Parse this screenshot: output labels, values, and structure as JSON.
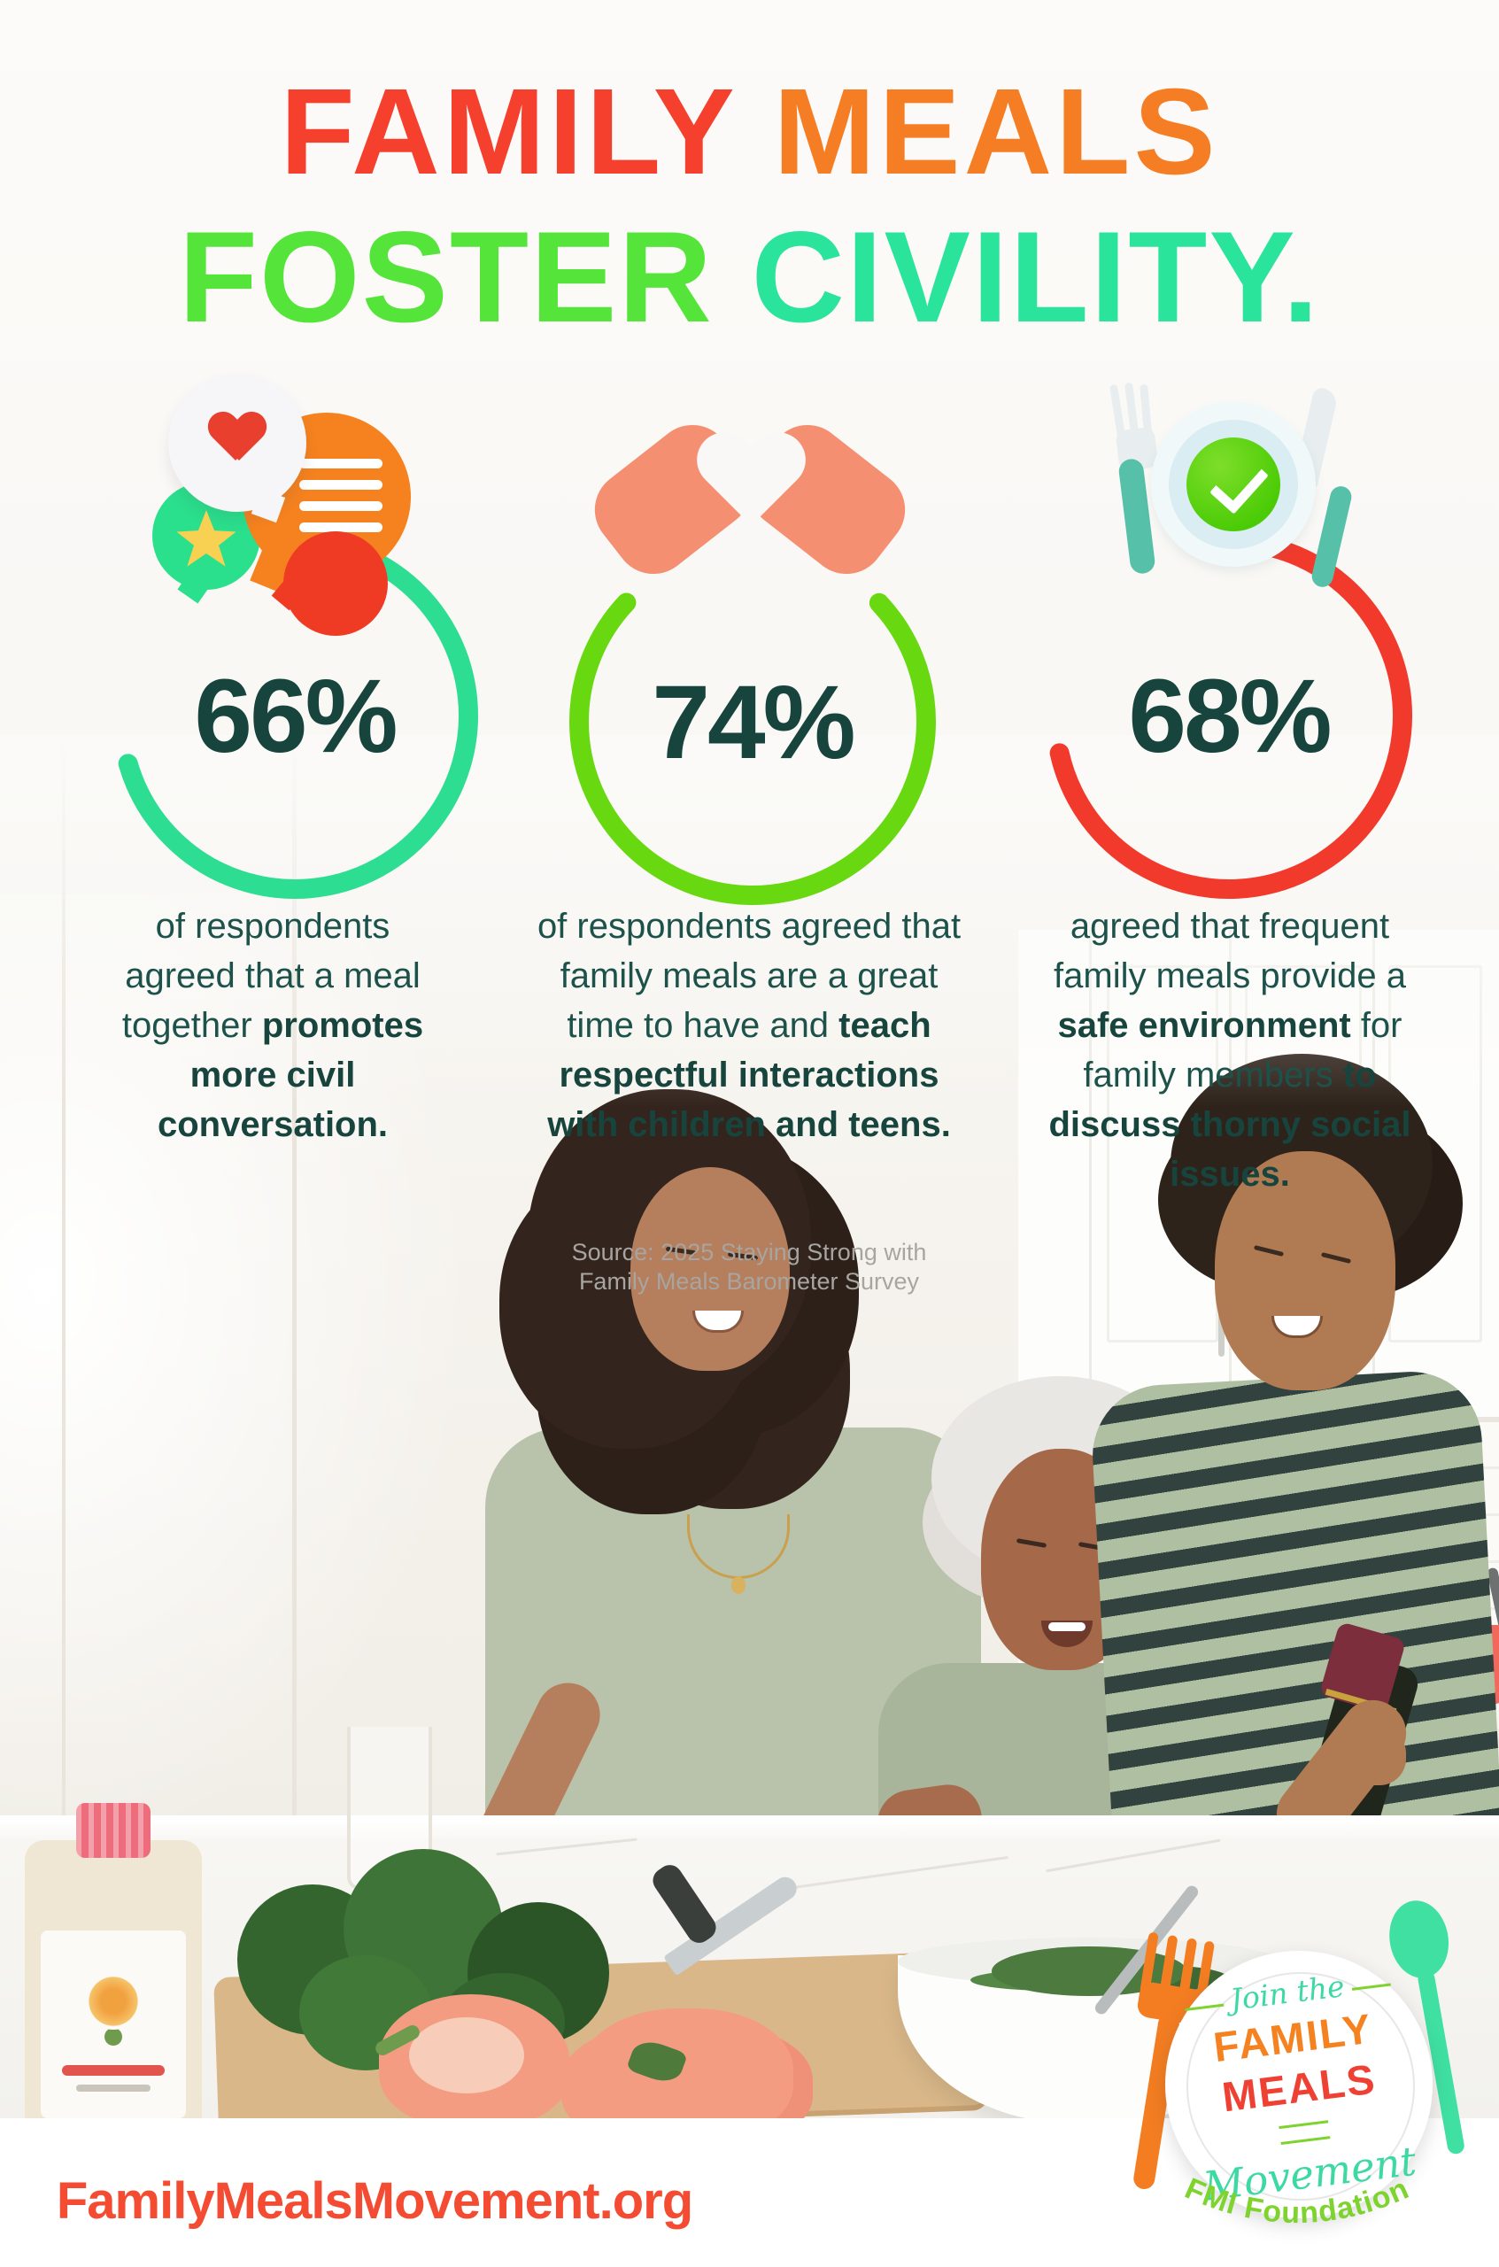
{
  "title": {
    "family": "FAMILY",
    "meals": "MEALS",
    "foster": "FOSTER",
    "civility": "CIVILITY."
  },
  "stats": [
    {
      "pct": "66%",
      "ring_color": "#2DDE92",
      "icon": "chat-bubbles-heart-icon",
      "segments": [
        {
          "text": "of respondents agreed that a meal together ",
          "bold": false
        },
        {
          "text": "promotes more civil conversation.",
          "bold": true
        }
      ]
    },
    {
      "pct": "74%",
      "ring_color": "#68D911",
      "icon": "heart-hands-icon",
      "segments": [
        {
          "text": "of respondents agreed that family meals are a great time to have and ",
          "bold": false
        },
        {
          "text": "teach respectful interactions with children and teens.",
          "bold": true
        }
      ]
    },
    {
      "pct": "68%",
      "ring_color": "#F23A2C",
      "icon": "plate-check-cutlery-icon",
      "segments": [
        {
          "text": "agreed that frequent family meals provide a ",
          "bold": false
        },
        {
          "text": "safe environment",
          "bold": true
        },
        {
          "text": " for family members ",
          "bold": false
        },
        {
          "text": "to discuss thorny social issues.",
          "bold": true
        }
      ]
    }
  ],
  "source": {
    "line1": "Source: 2025 Staying Strong with",
    "line2": "Family Meals Barometer Survey"
  },
  "footer": {
    "url": "FamilyMealsMovement.org"
  },
  "badge": {
    "join": "Join the",
    "family": "FAMILY",
    "meals": "MEALS",
    "movement": "Movement",
    "foundation": "FMI Foundation"
  },
  "colors": {
    "title_family": "#F4402C",
    "title_meals": "#F57D23",
    "title_foster": "#55E53A",
    "title_civility": "#2BE49C",
    "stat_number": "#17453E",
    "body_text": "#1D524B",
    "source_text": "#A8A5A1",
    "url_text": "#F44B33"
  },
  "chart_data": {
    "type": "pie",
    "variant": "percent-ring-gauges",
    "title": "FAMILY MEALS FOSTER CIVILITY.",
    "unit": "%",
    "categories": [
      "meal together promotes more civil conversation",
      "family meals are a great time to teach respectful interactions with children and teens",
      "frequent family meals provide a safe environment to discuss thorny social issues"
    ],
    "values": [
      66,
      74,
      68
    ],
    "ring_colors": [
      "#2DDE92",
      "#68D911",
      "#F23A2C"
    ],
    "legend_position": "none"
  }
}
